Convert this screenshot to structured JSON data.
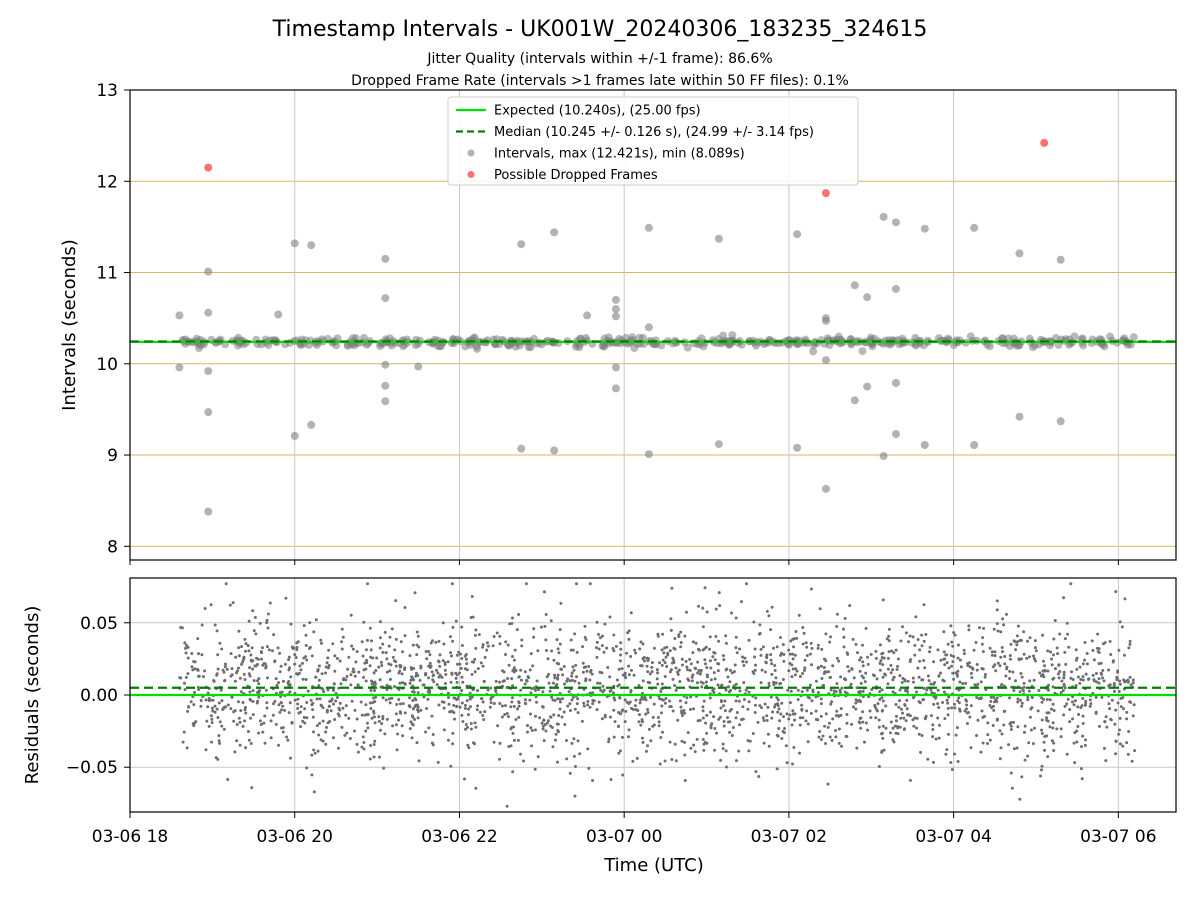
{
  "chart_data": {
    "type": "scatter",
    "title": "Timestamp Intervals - UK001W_20240306_183235_324615",
    "subtitle_lines": [
      "Jitter Quality (intervals within +/-1 frame): 86.6%",
      "Dropped Frame Rate (intervals >1 frames late within 50 FF files): 0.1%"
    ],
    "colors": {
      "expected": "#00e000",
      "median": "#008000",
      "intervals": "#808080",
      "dropped": "#ff4040",
      "grid_top": "#c9a227",
      "grid_v": "#c8c8c8",
      "grid_bottom": "#c8c8c8"
    },
    "x": {
      "label": "Time (UTC)",
      "start": "2024-03-06 18:00",
      "end": "2024-03-07 06:42",
      "start_hours": 0,
      "end_hours": 12.7,
      "data_start_hours": 0.6,
      "data_end_hours": 12.2,
      "ticks": [
        {
          "hours": 0,
          "label": "03-06 18"
        },
        {
          "hours": 2,
          "label": "03-06 20"
        },
        {
          "hours": 4,
          "label": "03-06 22"
        },
        {
          "hours": 6,
          "label": "03-07 00"
        },
        {
          "hours": 8,
          "label": "03-07 02"
        },
        {
          "hours": 10,
          "label": "03-07 04"
        },
        {
          "hours": 12,
          "label": "03-07 06"
        }
      ]
    },
    "top": {
      "ylabel": "Intervals (seconds)",
      "ylim": [
        7.85,
        13.0
      ],
      "yticks": [
        8,
        9,
        10,
        11,
        12,
        13
      ],
      "expected": 10.24,
      "median": 10.245,
      "legend": [
        {
          "key": "expected",
          "label": "Expected (10.240s), (25.00 fps)"
        },
        {
          "key": "median",
          "label": "Median (10.245 +/- 0.126 s), (24.99 +/- 3.14 fps)"
        },
        {
          "key": "intervals",
          "label": "Intervals, max (12.421s), min (8.089s)"
        },
        {
          "key": "dropped",
          "label": "Possible Dropped Frames"
        }
      ],
      "legend_placement": "top-center",
      "dropped_frames": [
        {
          "x": 0.95,
          "y": 12.15
        },
        {
          "x": 8.45,
          "y": 11.87
        },
        {
          "x": 11.1,
          "y": 12.42
        }
      ],
      "outliers": [
        {
          "x": 0.6,
          "y": 10.53
        },
        {
          "x": 0.6,
          "y": 9.96
        },
        {
          "x": 0.95,
          "y": 10.56
        },
        {
          "x": 0.95,
          "y": 11.01
        },
        {
          "x": 0.95,
          "y": 9.92
        },
        {
          "x": 0.95,
          "y": 9.47
        },
        {
          "x": 0.95,
          "y": 8.38
        },
        {
          "x": 1.8,
          "y": 10.54
        },
        {
          "x": 2.0,
          "y": 11.32
        },
        {
          "x": 2.2,
          "y": 11.3
        },
        {
          "x": 2.0,
          "y": 9.21
        },
        {
          "x": 2.2,
          "y": 9.33
        },
        {
          "x": 3.1,
          "y": 11.15
        },
        {
          "x": 3.1,
          "y": 10.72
        },
        {
          "x": 3.1,
          "y": 9.99
        },
        {
          "x": 3.1,
          "y": 9.76
        },
        {
          "x": 3.1,
          "y": 9.59
        },
        {
          "x": 3.5,
          "y": 9.97
        },
        {
          "x": 4.75,
          "y": 11.31
        },
        {
          "x": 4.75,
          "y": 9.07
        },
        {
          "x": 5.15,
          "y": 11.44
        },
        {
          "x": 5.15,
          "y": 9.05
        },
        {
          "x": 5.55,
          "y": 10.53
        },
        {
          "x": 5.9,
          "y": 10.7
        },
        {
          "x": 5.9,
          "y": 10.6
        },
        {
          "x": 5.9,
          "y": 10.52
        },
        {
          "x": 5.9,
          "y": 9.96
        },
        {
          "x": 5.9,
          "y": 9.73
        },
        {
          "x": 6.3,
          "y": 11.49
        },
        {
          "x": 6.3,
          "y": 10.4
        },
        {
          "x": 6.3,
          "y": 9.01
        },
        {
          "x": 7.15,
          "y": 11.37
        },
        {
          "x": 7.15,
          "y": 9.12
        },
        {
          "x": 8.1,
          "y": 11.42
        },
        {
          "x": 8.1,
          "y": 9.08
        },
        {
          "x": 8.45,
          "y": 10.5
        },
        {
          "x": 8.45,
          "y": 10.47
        },
        {
          "x": 8.45,
          "y": 10.04
        },
        {
          "x": 8.45,
          "y": 8.63
        },
        {
          "x": 8.8,
          "y": 10.86
        },
        {
          "x": 8.8,
          "y": 9.6
        },
        {
          "x": 8.95,
          "y": 10.73
        },
        {
          "x": 8.95,
          "y": 9.75
        },
        {
          "x": 9.15,
          "y": 11.61
        },
        {
          "x": 9.15,
          "y": 8.99
        },
        {
          "x": 9.3,
          "y": 11.55
        },
        {
          "x": 9.3,
          "y": 10.82
        },
        {
          "x": 9.3,
          "y": 9.79
        },
        {
          "x": 9.3,
          "y": 9.23
        },
        {
          "x": 9.65,
          "y": 11.48
        },
        {
          "x": 9.65,
          "y": 9.11
        },
        {
          "x": 10.25,
          "y": 11.49
        },
        {
          "x": 10.25,
          "y": 9.11
        },
        {
          "x": 10.8,
          "y": 11.21
        },
        {
          "x": 10.8,
          "y": 9.42
        },
        {
          "x": 11.3,
          "y": 11.14
        },
        {
          "x": 11.3,
          "y": 9.37
        }
      ],
      "band": {
        "center": 10.24,
        "spread": 0.05,
        "count": 460
      }
    },
    "bottom": {
      "ylabel": "Residuals (seconds)",
      "ylim": [
        -0.081,
        0.081
      ],
      "yticks": [
        -0.05,
        0.0,
        0.05
      ],
      "ytick_labels": [
        "−0.05",
        "0.00",
        "0.05"
      ],
      "expected": 0.0,
      "median": 0.005,
      "cloud": {
        "count": 2600,
        "spread": 0.075
      }
    }
  }
}
